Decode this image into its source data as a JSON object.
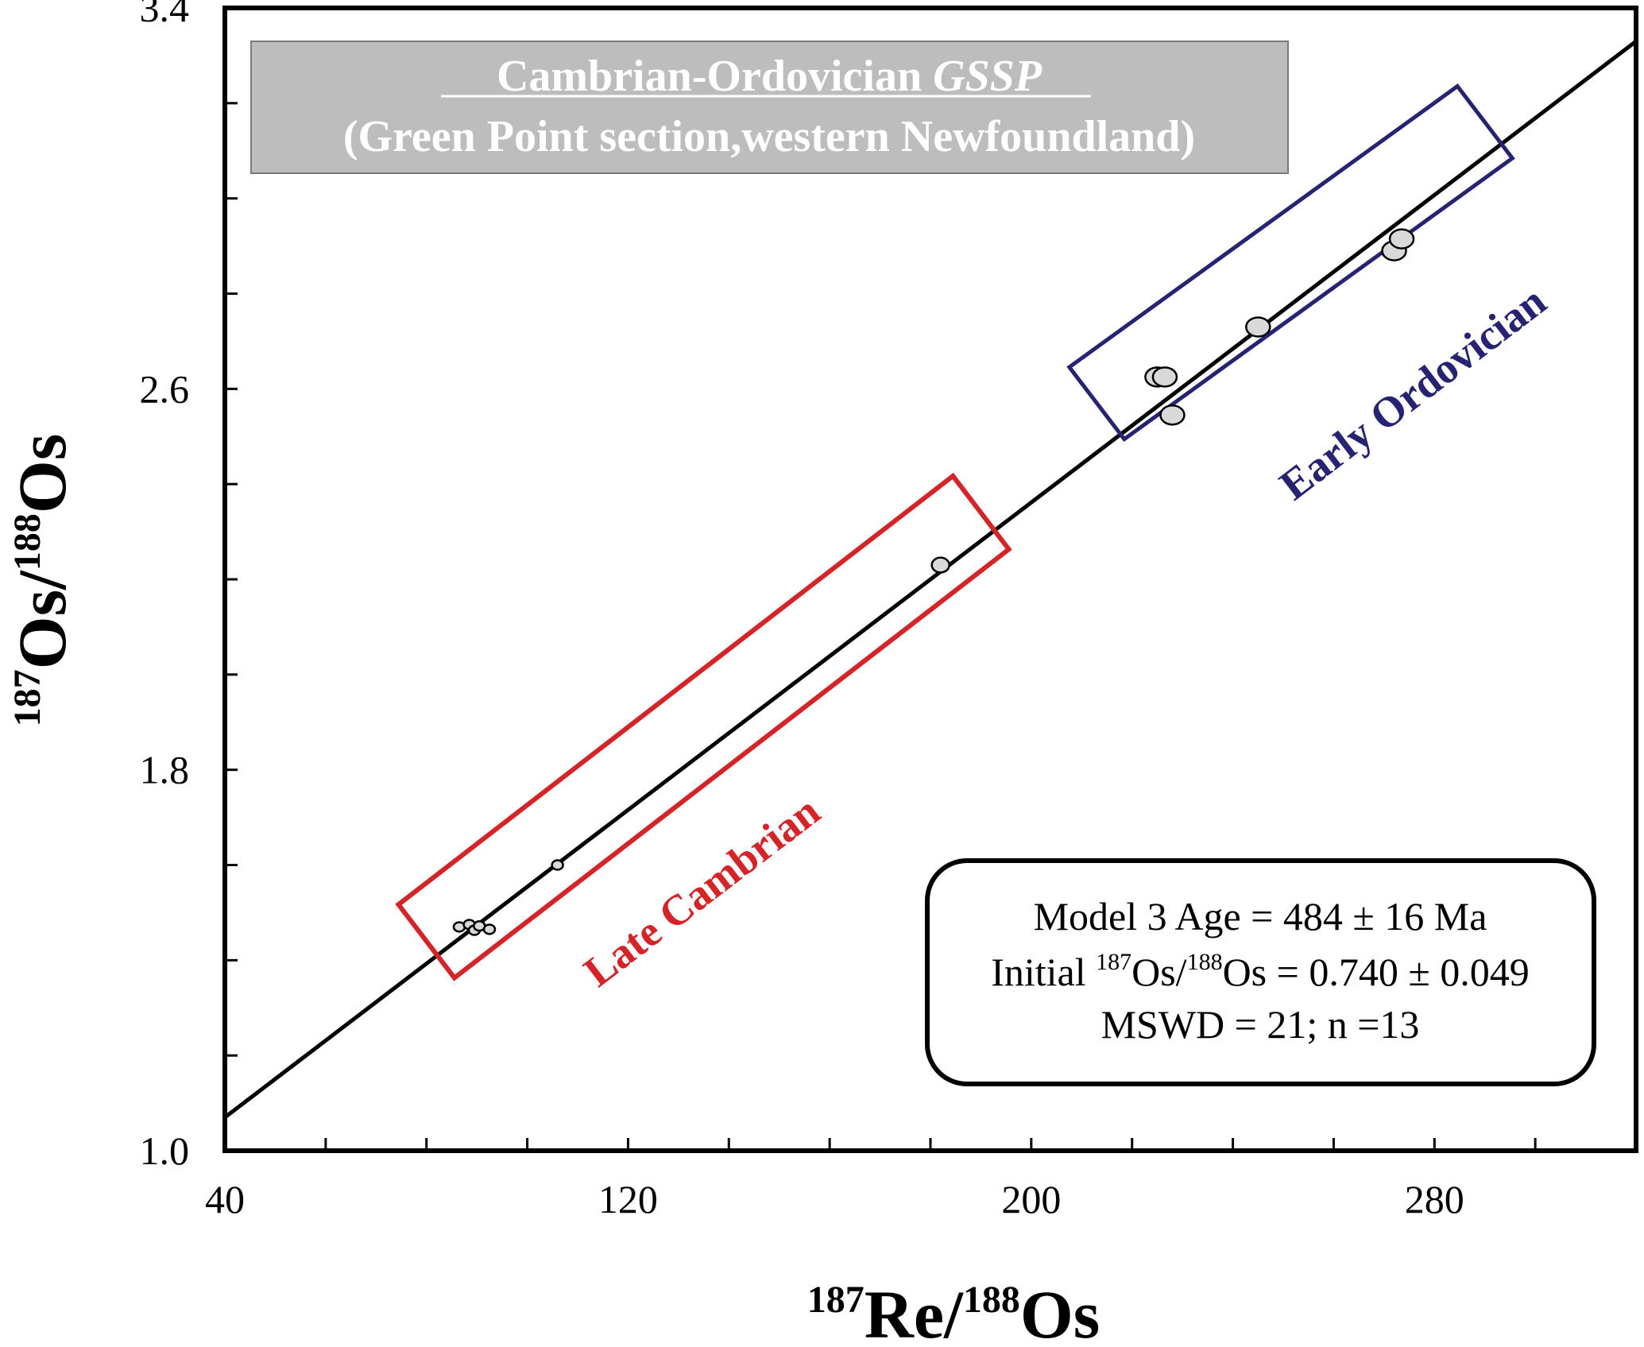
{
  "chart_data": {
    "type": "scatter",
    "title_line1_main": "Cambrian-Ordovician ",
    "title_line1_italic": "GSSP",
    "title_line2": "(Green Point section,western Newfoundland)",
    "xlabel": {
      "sup1": "187",
      "base1": "Re/",
      "sup2": "188",
      "base2": "Os"
    },
    "ylabel": {
      "sup1": "187",
      "base1": "Os/",
      "sup2": "188",
      "base2": "Os"
    },
    "xlim": [
      40,
      320
    ],
    "ylim": [
      1.0,
      3.4
    ],
    "x_ticks": [
      "40",
      "120",
      "200",
      "280"
    ],
    "x_tick_values": [
      40,
      120,
      200,
      280
    ],
    "x_minor_step": 20,
    "y_ticks": [
      "1.0",
      "1.8",
      "2.6",
      "3.4"
    ],
    "y_tick_values": [
      1.0,
      1.8,
      2.6,
      3.4
    ],
    "y_minor_step": 0.2,
    "isochron": {
      "x0": 40,
      "y0": 1.07,
      "x1": 320,
      "y1": 3.33
    },
    "late_cambrian": {
      "label": "Late Cambrian",
      "color": "#d42428",
      "points": [
        {
          "x": 86.5,
          "y": 1.47
        },
        {
          "x": 88.5,
          "y": 1.475
        },
        {
          "x": 89.5,
          "y": 1.463
        },
        {
          "x": 90.5,
          "y": 1.472
        },
        {
          "x": 92.5,
          "y": 1.465
        },
        {
          "x": 106,
          "y": 1.6
        },
        {
          "x": 182,
          "y": 2.23
        }
      ]
    },
    "early_ordovician": {
      "label": "Early Ordovician",
      "color": "#262372",
      "points": [
        {
          "x": 225,
          "y": 2.625
        },
        {
          "x": 226.5,
          "y": 2.625
        },
        {
          "x": 228,
          "y": 2.545
        },
        {
          "x": 245,
          "y": 2.73
        },
        {
          "x": 272,
          "y": 2.89
        },
        {
          "x": 273.5,
          "y": 2.915
        }
      ]
    },
    "stats": {
      "line1": "Model 3 Age = 484 ± 16 Ma",
      "line2_pre": "Initial ",
      "line2_sup1": "187",
      "line2_mid": "Os/",
      "line2_sup2": "188",
      "line2_post": "Os = 0.740 ± 0.049",
      "line3": "MSWD = 21; n =13"
    }
  }
}
